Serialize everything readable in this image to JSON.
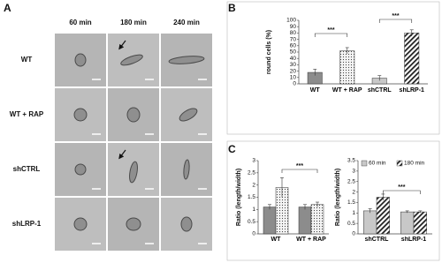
{
  "panel_labels": [
    "A",
    "B",
    "C"
  ],
  "panel_a": {
    "columns": [
      "60 min",
      "180 min",
      "240 min"
    ],
    "rows": [
      "WT",
      "WT + RAP",
      "shCTRL",
      "shLRP-1"
    ]
  },
  "chart_data": [
    {
      "type": "bar",
      "y_label": "round cells (%)",
      "categories": [
        "WT",
        "WT + RAP",
        "shCTRL",
        "shLRP-1"
      ],
      "values": [
        18,
        52,
        9,
        80
      ],
      "errors": [
        5,
        5,
        4,
        5
      ],
      "colors": [
        "#8c8c8c",
        "#d0d0d0",
        "#c8c8c8",
        "#555555"
      ],
      "patterns": [
        "solid",
        "dots",
        "solid",
        "hatch"
      ],
      "ylim": [
        0,
        100
      ],
      "yticks": [
        0,
        10,
        20,
        30,
        40,
        50,
        60,
        70,
        80,
        90,
        100
      ],
      "annotations": [
        "***",
        "***"
      ]
    },
    {
      "type": "bar",
      "y_label": "Ratio (length/width)",
      "categories": [
        "WT",
        "WT + RAP"
      ],
      "series": [
        {
          "color": "#8c8c8c",
          "pattern": "solid",
          "values": [
            1.1,
            1.1
          ],
          "errors": [
            0.1,
            0.1
          ]
        },
        {
          "color": "#d0d0d0",
          "pattern": "dots",
          "values": [
            1.9,
            1.2
          ],
          "errors": [
            0.4,
            0.1
          ]
        }
      ],
      "ylim": [
        0,
        3
      ],
      "yticks": [
        0,
        0.5,
        1,
        1.5,
        2,
        2.5,
        3
      ],
      "annotations": [
        "***"
      ]
    },
    {
      "type": "bar",
      "y_label": "Ratio (length/width)",
      "categories": [
        "shCTRL",
        "shLRP-1"
      ],
      "series": [
        {
          "name": "60 min",
          "color": "#c8c8c8",
          "pattern": "solid",
          "values": [
            1.1,
            1.05
          ],
          "errors": [
            0.1,
            0.05
          ]
        },
        {
          "name": "180 min",
          "color": "#555555",
          "pattern": "hatch",
          "values": [
            1.75,
            1.05
          ],
          "errors": [
            0.15,
            0.05
          ]
        }
      ],
      "ylim": [
        0,
        3.5
      ],
      "yticks": [
        0,
        0.5,
        1,
        1.5,
        2,
        2.5,
        3,
        3.5
      ],
      "legend": "upper center",
      "annotations": [
        "***"
      ]
    }
  ]
}
